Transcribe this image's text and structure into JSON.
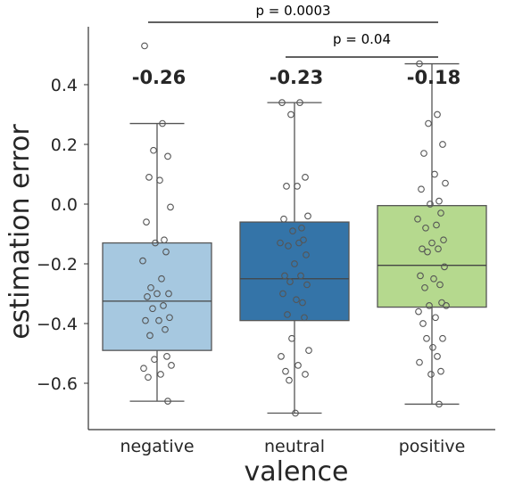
{
  "chart_data": {
    "type": "box",
    "title": "",
    "xlabel": "valence",
    "ylabel": "estimation error",
    "ylim": [
      -0.75,
      0.57
    ],
    "yticks": [
      -0.6,
      -0.4,
      -0.2,
      0.0,
      0.2,
      0.4
    ],
    "ytick_labels": [
      "−0.6",
      "−0.4",
      "−0.2",
      "0.0",
      "0.2",
      "0.4"
    ],
    "grid": false,
    "categories": [
      "negative",
      "neutral",
      "positive"
    ],
    "boxes": [
      {
        "category": "negative",
        "color": "#a6c8e0",
        "whisker_low": -0.66,
        "q1": -0.49,
        "median": -0.325,
        "q3": -0.13,
        "whisker_high": 0.27,
        "mean_label": "-0.26",
        "points": [
          0.53,
          0.27,
          0.18,
          0.16,
          0.09,
          0.08,
          -0.01,
          -0.06,
          -0.12,
          -0.13,
          -0.16,
          -0.19,
          -0.25,
          -0.28,
          -0.3,
          -0.3,
          -0.31,
          -0.34,
          -0.35,
          -0.38,
          -0.39,
          -0.39,
          -0.42,
          -0.44,
          -0.51,
          -0.52,
          -0.54,
          -0.55,
          -0.57,
          -0.58,
          -0.66
        ]
      },
      {
        "category": "neutral",
        "color": "#3474a8",
        "whisker_low": -0.7,
        "q1": -0.39,
        "median": -0.25,
        "q3": -0.06,
        "whisker_high": 0.34,
        "mean_label": "-0.23",
        "points": [
          0.34,
          0.34,
          0.3,
          0.09,
          0.06,
          0.06,
          -0.04,
          -0.05,
          -0.08,
          -0.09,
          -0.12,
          -0.13,
          -0.13,
          -0.14,
          -0.17,
          -0.2,
          -0.24,
          -0.24,
          -0.26,
          -0.27,
          -0.3,
          -0.32,
          -0.33,
          -0.37,
          -0.38,
          -0.45,
          -0.49,
          -0.51,
          -0.54,
          -0.56,
          -0.57,
          -0.59,
          -0.7
        ]
      },
      {
        "category": "positive",
        "color": "#b5d98e",
        "whisker_low": -0.67,
        "q1": -0.345,
        "median": -0.205,
        "q3": -0.005,
        "whisker_high": 0.47,
        "mean_label": "-0.18",
        "points": [
          0.47,
          0.3,
          0.27,
          0.2,
          0.17,
          0.1,
          0.07,
          0.05,
          0.01,
          0.0,
          -0.03,
          -0.05,
          -0.07,
          -0.08,
          -0.12,
          -0.13,
          -0.15,
          -0.15,
          -0.16,
          -0.21,
          -0.24,
          -0.25,
          -0.27,
          -0.28,
          -0.33,
          -0.34,
          -0.34,
          -0.36,
          -0.38,
          -0.4,
          -0.45,
          -0.45,
          -0.48,
          -0.51,
          -0.53,
          -0.56,
          -0.57,
          -0.67
        ]
      }
    ],
    "annotations": [
      {
        "from": "negative",
        "to": "positive",
        "text": "p = 0.0003"
      },
      {
        "from": "neutral",
        "to": "positive",
        "text": "p = 0.04"
      }
    ]
  }
}
